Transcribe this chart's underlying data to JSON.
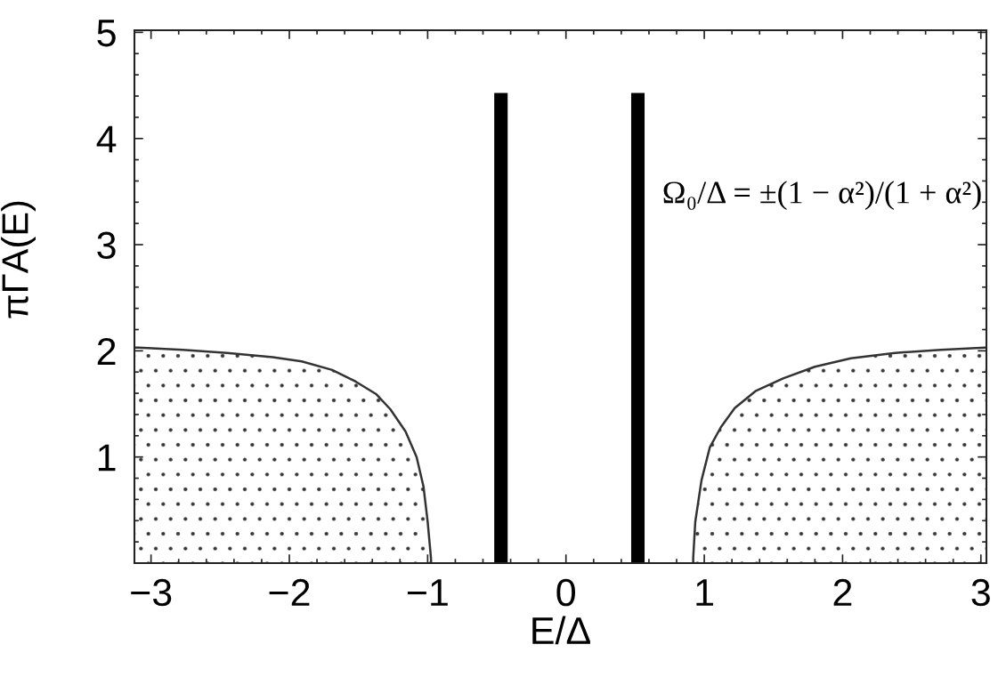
{
  "chart_data": {
    "type": "area",
    "xlabel": "E/Δ",
    "ylabel": "πΓA(E)",
    "annotations": [
      "Ω₀/Δ = ±(1 − α²)/(1 + α²)"
    ],
    "series": [
      {
        "color": "#333333",
        "x": [
          -3.12,
          -3.09,
          -2.77,
          -2.45,
          -2.12,
          -1.91,
          -1.69,
          -1.52,
          -1.37,
          -1.27,
          -1.16,
          -1.08,
          -1.03,
          -1.0,
          -0.976,
          -0.975
        ],
        "values": [
          2.03,
          2.03,
          2.01,
          1.98,
          1.94,
          1.9,
          1.82,
          1.71,
          1.59,
          1.45,
          1.24,
          1.0,
          0.72,
          0.39,
          0.05,
          0
        ]
      },
      {
        "color": "#333333",
        "x": [
          0.92,
          0.92,
          0.935,
          0.98,
          1.04,
          1.12,
          1.22,
          1.37,
          1.57,
          1.8,
          2.06,
          2.38,
          2.71,
          3.03
        ],
        "values": [
          0,
          0.05,
          0.39,
          0.78,
          1.09,
          1.28,
          1.46,
          1.62,
          1.74,
          1.85,
          1.93,
          1.98,
          2.01,
          2.03
        ]
      },
      {
        "type": "bar",
        "color": "#000000",
        "x": [
          -0.47,
          0.52
        ],
        "values": [
          4.43,
          4.43
        ]
      }
    ],
    "xlim": [
      -3.12,
      3.04
    ],
    "ylim": [
      0,
      5.02
    ],
    "xticks": [
      {
        "value": -3,
        "label": "−3"
      },
      {
        "value": -2,
        "label": "−2"
      },
      {
        "value": -1,
        "label": "−1"
      },
      0,
      1,
      2,
      3
    ],
    "yticks": [
      1,
      2,
      3,
      4,
      5
    ],
    "grid": false
  }
}
